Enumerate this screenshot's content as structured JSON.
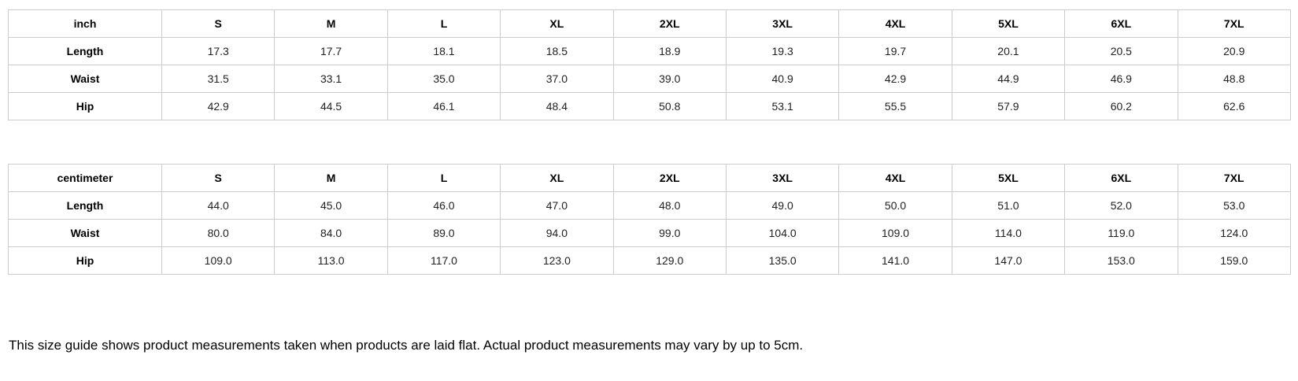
{
  "tables": [
    {
      "unit_label": "inch",
      "sizes": [
        "S",
        "M",
        "L",
        "XL",
        "2XL",
        "3XL",
        "4XL",
        "5XL",
        "6XL",
        "7XL"
      ],
      "rows": [
        {
          "label": "Length",
          "values": [
            "17.3",
            "17.7",
            "18.1",
            "18.5",
            "18.9",
            "19.3",
            "19.7",
            "20.1",
            "20.5",
            "20.9"
          ]
        },
        {
          "label": "Waist",
          "values": [
            "31.5",
            "33.1",
            "35.0",
            "37.0",
            "39.0",
            "40.9",
            "42.9",
            "44.9",
            "46.9",
            "48.8"
          ]
        },
        {
          "label": "Hip",
          "values": [
            "42.9",
            "44.5",
            "46.1",
            "48.4",
            "50.8",
            "53.1",
            "55.5",
            "57.9",
            "60.2",
            "62.6"
          ]
        }
      ]
    },
    {
      "unit_label": "centimeter",
      "sizes": [
        "S",
        "M",
        "L",
        "XL",
        "2XL",
        "3XL",
        "4XL",
        "5XL",
        "6XL",
        "7XL"
      ],
      "rows": [
        {
          "label": "Length",
          "values": [
            "44.0",
            "45.0",
            "46.0",
            "47.0",
            "48.0",
            "49.0",
            "50.0",
            "51.0",
            "52.0",
            "53.0"
          ]
        },
        {
          "label": "Waist",
          "values": [
            "80.0",
            "84.0",
            "89.0",
            "94.0",
            "99.0",
            "104.0",
            "109.0",
            "114.0",
            "119.0",
            "124.0"
          ]
        },
        {
          "label": "Hip",
          "values": [
            "109.0",
            "113.0",
            "117.0",
            "123.0",
            "129.0",
            "135.0",
            "141.0",
            "147.0",
            "153.0",
            "159.0"
          ]
        }
      ]
    }
  ],
  "note": "This size guide shows product measurements taken when products are laid flat. Actual product measurements may vary by up to 5cm.",
  "colors": {
    "border": "#cccccc",
    "header_text": "#000000",
    "value_text": "#222222",
    "background": "#ffffff"
  }
}
